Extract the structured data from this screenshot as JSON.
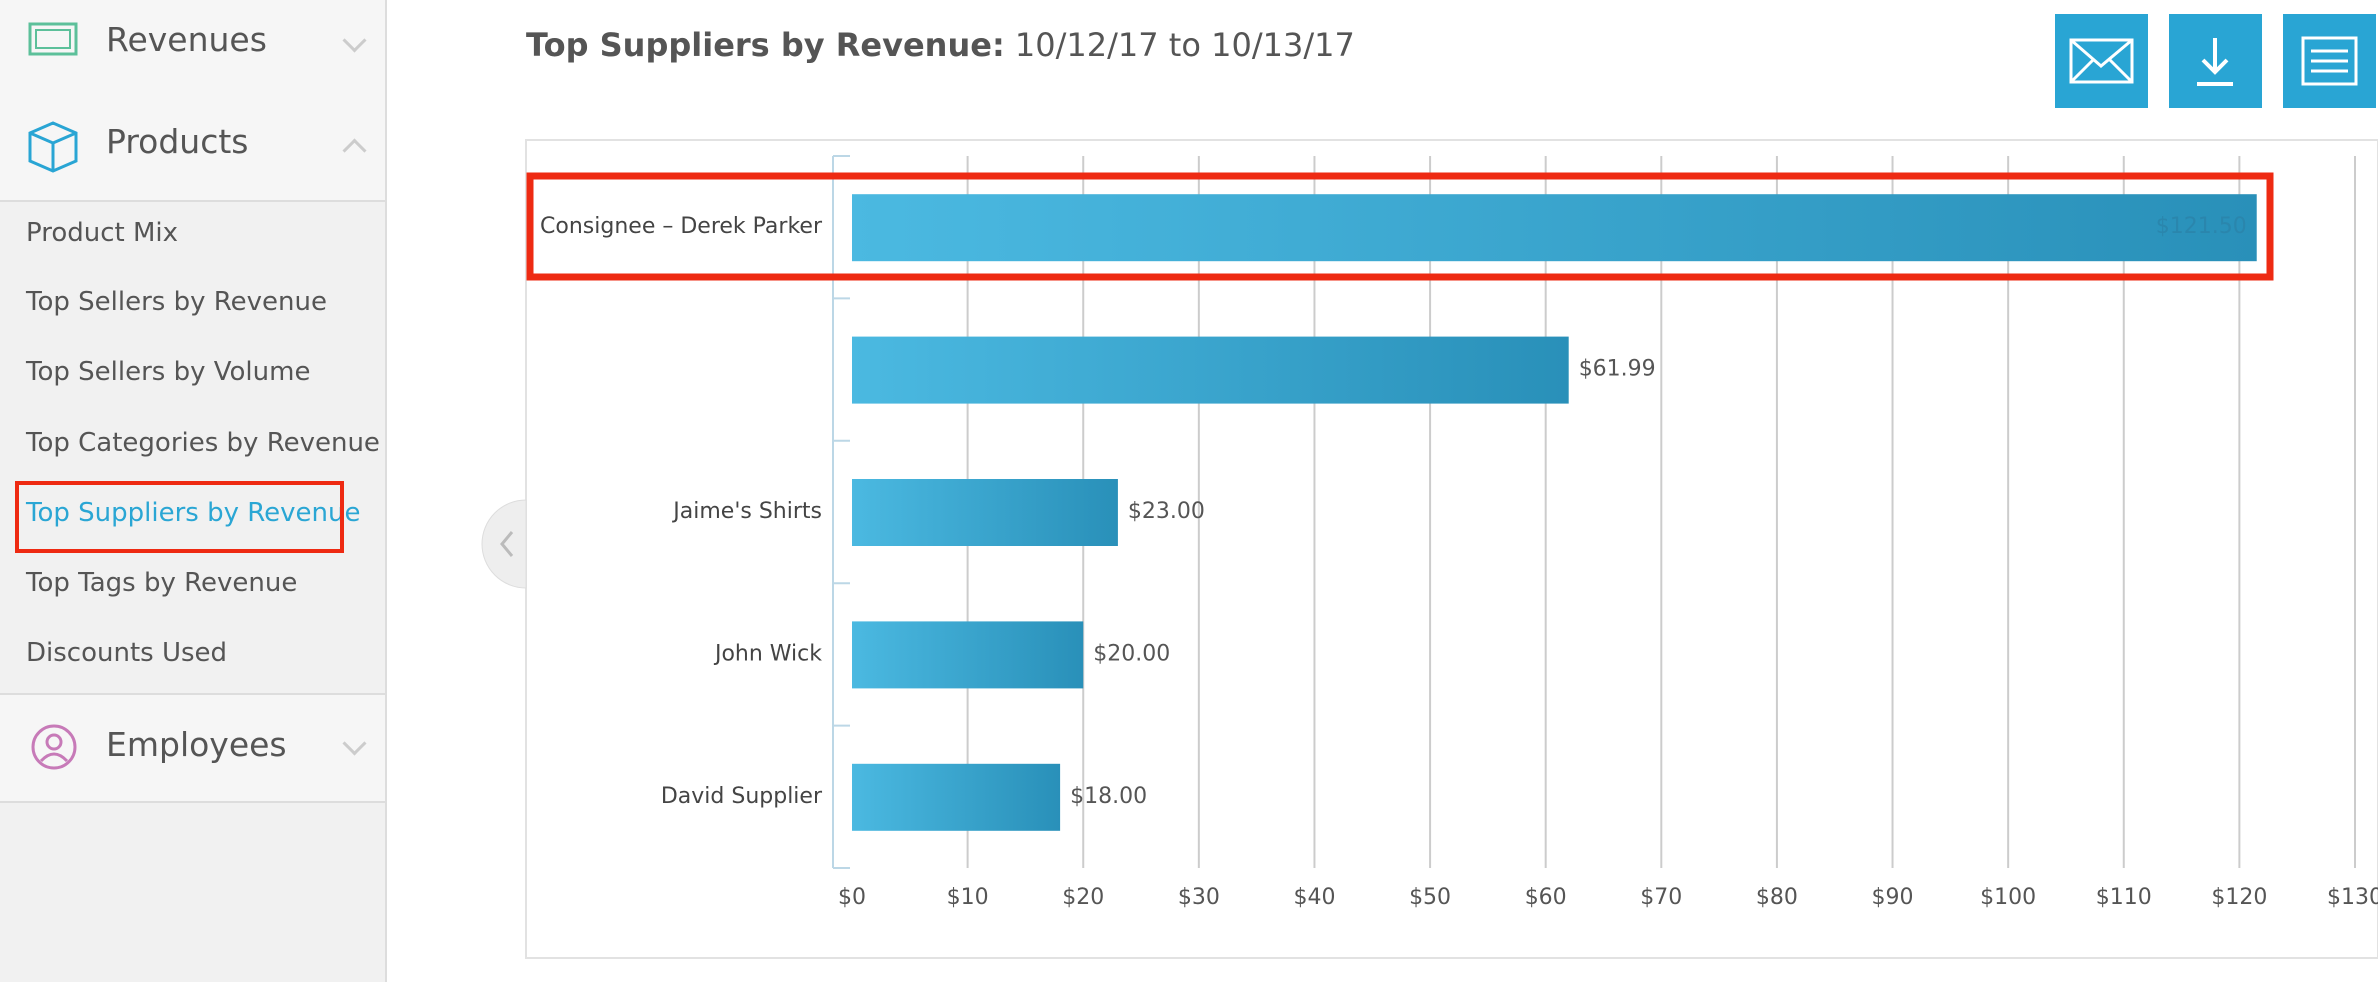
{
  "sidebar": {
    "sections": [
      {
        "label": "Revenues"
      },
      {
        "label": "Products",
        "items": [
          "Product Mix",
          "Top Sellers by Revenue",
          "Top Sellers by Volume",
          "Top Categories by Revenue",
          "Top Suppliers by Revenue",
          "Top Tags by Revenue",
          "Discounts Used"
        ]
      },
      {
        "label": "Employees"
      }
    ]
  },
  "header": {
    "title": "Top Suppliers by Revenue:",
    "date_range": "10/12/17 to 10/13/17"
  },
  "chart_data": {
    "type": "bar",
    "orientation": "horizontal",
    "categories": [
      "Consignee – Derek Parker",
      null,
      "Jaime's Shirts",
      "John Wick",
      "David Supplier"
    ],
    "values": [
      121.5,
      61.99,
      23,
      20,
      18
    ],
    "value_labels": [
      "$121.50",
      "$61.99",
      "$23.00",
      "$20.00",
      "$18.00"
    ],
    "color": "#3aa7d3",
    "xlim": [
      0,
      130
    ],
    "xticks": [
      {
        "value": 0,
        "label": "$0"
      },
      {
        "value": 10,
        "label": "$10"
      },
      {
        "value": 20,
        "label": "$20"
      },
      {
        "value": 30,
        "label": "$30"
      },
      {
        "value": 40,
        "label": "$40"
      },
      {
        "value": 50,
        "label": "$50"
      },
      {
        "value": 60,
        "label": "$60"
      },
      {
        "value": 70,
        "label": "$70"
      },
      {
        "value": 80,
        "label": "$80"
      },
      {
        "value": 90,
        "label": "$90"
      },
      {
        "value": 100,
        "label": "$100"
      },
      {
        "value": 110,
        "label": "$110"
      },
      {
        "value": 120,
        "label": "$120"
      },
      {
        "value": 130,
        "label": "$130"
      }
    ],
    "grid": true
  }
}
